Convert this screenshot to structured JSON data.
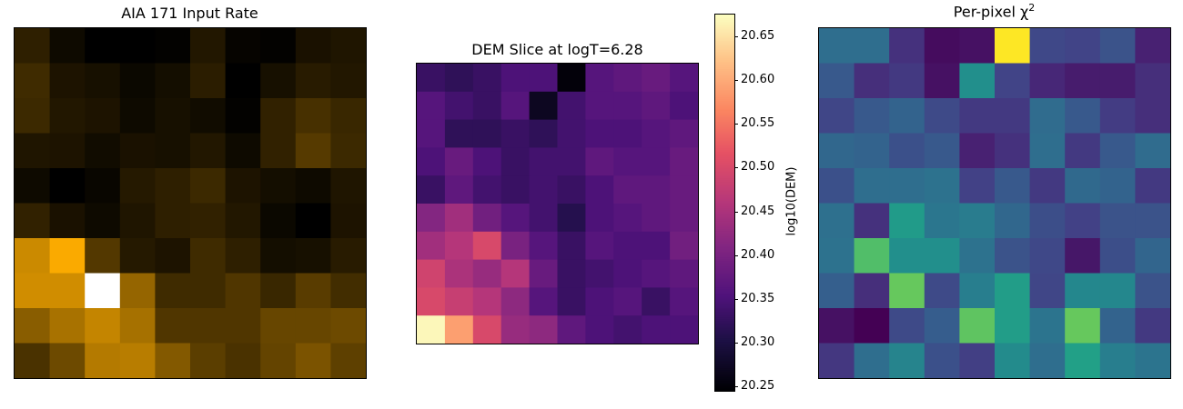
{
  "chart_data": [
    {
      "type": "heatmap",
      "title": "AIA 171 Input Rate",
      "colormap": "afmhot-orange",
      "rows": 10,
      "cols": 10,
      "values": [
        [
          0.18,
          0.07,
          0.02,
          0.02,
          0.03,
          0.14,
          0.04,
          0.03,
          0.11,
          0.13
        ],
        [
          0.24,
          0.12,
          0.1,
          0.06,
          0.09,
          0.17,
          0.02,
          0.1,
          0.16,
          0.14
        ],
        [
          0.23,
          0.14,
          0.12,
          0.07,
          0.1,
          0.08,
          0.03,
          0.19,
          0.27,
          0.22
        ],
        [
          0.13,
          0.12,
          0.08,
          0.11,
          0.1,
          0.14,
          0.07,
          0.19,
          0.32,
          0.23
        ],
        [
          0.07,
          0.02,
          0.05,
          0.15,
          0.18,
          0.23,
          0.12,
          0.09,
          0.07,
          0.13
        ],
        [
          0.19,
          0.11,
          0.07,
          0.13,
          0.18,
          0.19,
          0.14,
          0.06,
          0.02,
          0.12
        ],
        [
          0.78,
          0.98,
          0.31,
          0.15,
          0.12,
          0.24,
          0.18,
          0.09,
          0.1,
          0.16
        ],
        [
          0.8,
          0.8,
          1.0,
          0.55,
          0.24,
          0.24,
          0.3,
          0.22,
          0.33,
          0.25
        ],
        [
          0.5,
          0.63,
          0.75,
          0.62,
          0.3,
          0.3,
          0.3,
          0.38,
          0.38,
          0.4
        ],
        [
          0.28,
          0.4,
          0.68,
          0.7,
          0.48,
          0.34,
          0.28,
          0.37,
          0.45,
          0.35
        ]
      ]
    },
    {
      "type": "heatmap",
      "title": "DEM Slice at logT=6.28",
      "colormap": "magma",
      "rows": 10,
      "cols": 10,
      "vmin": 20.245,
      "vmax": 20.675,
      "colorbar": {
        "label": "log10(DEM)",
        "ticks": [
          "20.25",
          "20.30",
          "20.35",
          "20.40",
          "20.45",
          "20.50",
          "20.55",
          "20.60",
          "20.65"
        ],
        "tick_values": [
          20.25,
          20.3,
          20.35,
          20.4,
          20.45,
          20.5,
          20.55,
          20.6,
          20.65
        ]
      },
      "values": [
        [
          20.33,
          20.32,
          20.33,
          20.35,
          20.35,
          20.25,
          20.36,
          20.37,
          20.38,
          20.36
        ],
        [
          20.36,
          20.34,
          20.33,
          20.36,
          20.27,
          20.34,
          20.36,
          20.36,
          20.37,
          20.35
        ],
        [
          20.36,
          20.32,
          20.32,
          20.33,
          20.32,
          20.34,
          20.35,
          20.35,
          20.36,
          20.37
        ],
        [
          20.35,
          20.38,
          20.35,
          20.33,
          20.34,
          20.34,
          20.37,
          20.36,
          20.36,
          20.38
        ],
        [
          20.33,
          20.37,
          20.34,
          20.33,
          20.34,
          20.33,
          20.35,
          20.37,
          20.37,
          20.38
        ],
        [
          20.41,
          20.44,
          20.39,
          20.36,
          20.34,
          20.31,
          20.35,
          20.36,
          20.37,
          20.38
        ],
        [
          20.44,
          20.46,
          20.5,
          20.4,
          20.36,
          20.33,
          20.36,
          20.35,
          20.35,
          20.39
        ],
        [
          20.49,
          20.45,
          20.43,
          20.46,
          20.38,
          20.33,
          20.34,
          20.35,
          20.36,
          20.37
        ],
        [
          20.5,
          20.48,
          20.46,
          20.42,
          20.36,
          20.33,
          20.35,
          20.36,
          20.33,
          20.36
        ],
        [
          20.67,
          20.59,
          20.5,
          20.43,
          20.42,
          20.37,
          20.35,
          20.34,
          20.35,
          20.35
        ]
      ]
    },
    {
      "type": "heatmap",
      "title": "Per-pixel χ",
      "title_superscript": "2",
      "colormap": "viridis",
      "rows": 10,
      "cols": 10,
      "values": [
        [
          0.45,
          0.45,
          0.18,
          0.04,
          0.06,
          1.0,
          0.27,
          0.25,
          0.32,
          0.12
        ],
        [
          0.35,
          0.17,
          0.21,
          0.06,
          0.62,
          0.25,
          0.14,
          0.1,
          0.1,
          0.17
        ],
        [
          0.26,
          0.35,
          0.4,
          0.28,
          0.21,
          0.21,
          0.44,
          0.35,
          0.22,
          0.17
        ],
        [
          0.42,
          0.4,
          0.31,
          0.35,
          0.12,
          0.18,
          0.45,
          0.21,
          0.35,
          0.44
        ],
        [
          0.31,
          0.45,
          0.45,
          0.47,
          0.24,
          0.35,
          0.21,
          0.43,
          0.4,
          0.21
        ],
        [
          0.46,
          0.18,
          0.68,
          0.49,
          0.52,
          0.42,
          0.3,
          0.24,
          0.32,
          0.32
        ],
        [
          0.47,
          0.82,
          0.62,
          0.62,
          0.47,
          0.32,
          0.27,
          0.08,
          0.3,
          0.41
        ],
        [
          0.38,
          0.17,
          0.85,
          0.28,
          0.53,
          0.69,
          0.26,
          0.58,
          0.58,
          0.32
        ],
        [
          0.06,
          0.0,
          0.28,
          0.37,
          0.84,
          0.69,
          0.48,
          0.85,
          0.4,
          0.21
        ],
        [
          0.2,
          0.45,
          0.56,
          0.31,
          0.23,
          0.6,
          0.45,
          0.71,
          0.53,
          0.48
        ]
      ]
    }
  ]
}
